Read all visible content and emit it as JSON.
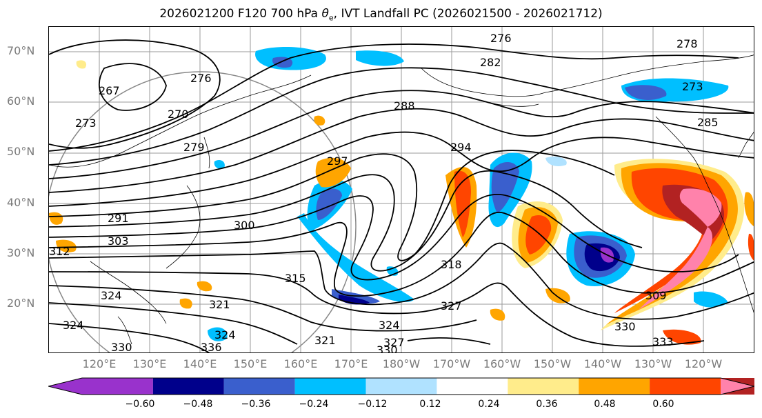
{
  "title_main": "2026021200 F120 700 hPa ",
  "title_symbol": "θ",
  "title_sub": "e",
  "title_rest": ", IVT Landfall PC (2026021500 - 2026021712)",
  "lat_labels": [
    "70°N",
    "60°N",
    "50°N",
    "40°N",
    "30°N",
    "20°N"
  ],
  "lon_labels": [
    "120°E",
    "130°E",
    "140°E",
    "150°E",
    "160°E",
    "170°E",
    "180°W",
    "170°W",
    "160°W",
    "150°W",
    "140°W",
    "130°W",
    "120°W"
  ],
  "colorbar": {
    "colors": [
      "#9932CC",
      "#00008B",
      "#3A5FCD",
      "#00BFFF",
      "#B0E2FF",
      "#FFFFFF",
      "#FFEC8B",
      "#FFA500",
      "#FF4500",
      "#B22222",
      "#FF82AB"
    ],
    "tick_labels": [
      "−0.60",
      "−0.48",
      "−0.36",
      "−0.24",
      "−0.12",
      "0.12",
      "0.24",
      "0.36",
      "0.48",
      "0.60"
    ]
  },
  "contour_labels": [
    "276",
    "282",
    "278",
    "273",
    "285",
    "267",
    "270",
    "273",
    "279",
    "276",
    "288",
    "294",
    "297",
    "291",
    "300",
    "303",
    "312",
    "315",
    "318",
    "327",
    "309",
    "324",
    "321",
    "324",
    "330",
    "336",
    "324",
    "321",
    "327",
    "330",
    "333",
    "324",
    "330"
  ]
}
